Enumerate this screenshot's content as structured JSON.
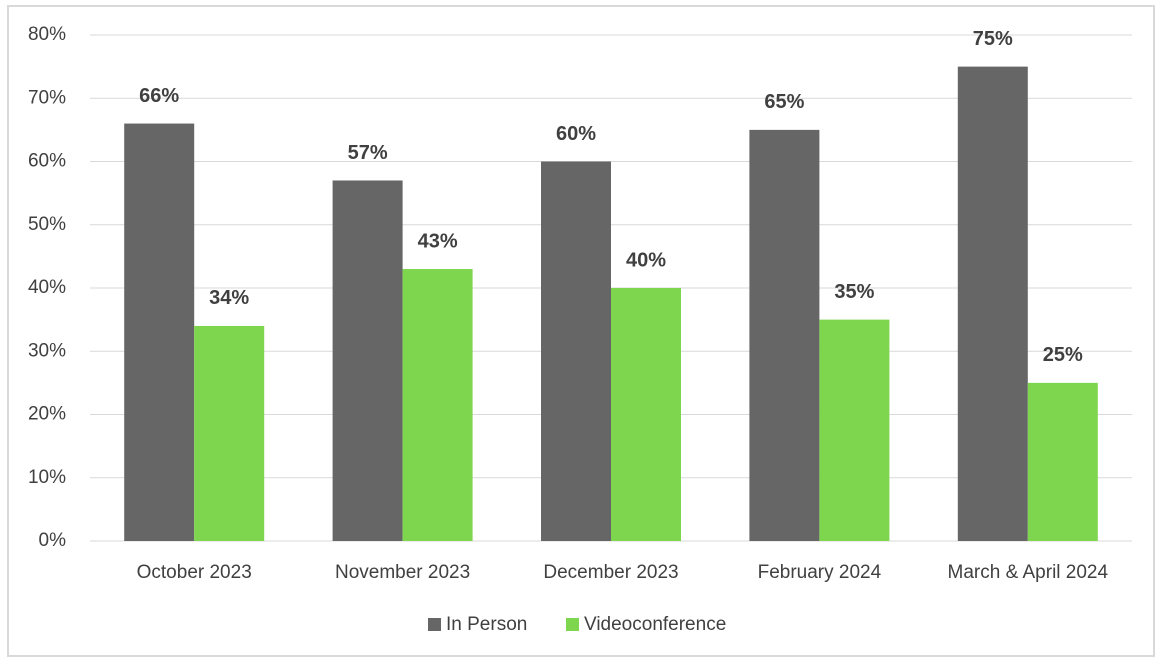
{
  "chart_data": {
    "type": "bar",
    "categories": [
      "October 2023",
      "November 2023",
      "December 2023",
      "February 2024",
      "March & April 2024"
    ],
    "series": [
      {
        "name": "In Person",
        "color": "#666666",
        "values": [
          66,
          57,
          60,
          65,
          75
        ],
        "value_labels": [
          "66%",
          "57%",
          "60%",
          "65%",
          "75%"
        ]
      },
      {
        "name": "Videoconference",
        "color": "#7ed64f",
        "values": [
          34,
          43,
          40,
          35,
          25
        ],
        "value_labels": [
          "34%",
          "43%",
          "40%",
          "35%",
          "25%"
        ]
      }
    ],
    "ylim": [
      0,
      80
    ],
    "yticks": [
      {
        "value": 0,
        "label": "0%"
      },
      {
        "value": 10,
        "label": "10%"
      },
      {
        "value": 20,
        "label": "20%"
      },
      {
        "value": 30,
        "label": "30%"
      },
      {
        "value": 40,
        "label": "40%"
      },
      {
        "value": 50,
        "label": "50%"
      },
      {
        "value": 60,
        "label": "60%"
      },
      {
        "value": 70,
        "label": "70%"
      },
      {
        "value": 80,
        "label": "80%"
      }
    ],
    "grid": true,
    "legend": "bottom"
  }
}
